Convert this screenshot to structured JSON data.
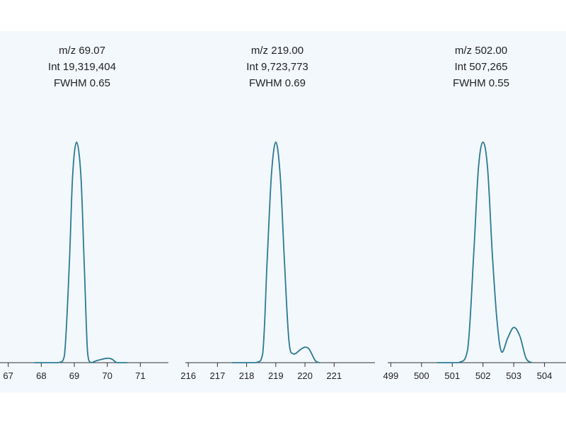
{
  "colors": {
    "line": "#2b7a93",
    "axis": "#333333",
    "panel_bg": "#f2f8fc"
  },
  "chart_data": [
    {
      "type": "line",
      "annotation": {
        "mz": "m/z 69.07",
        "int": "Int 19,319,404",
        "fwhm": "FWHM 0.65"
      },
      "xticks": [
        "67",
        "68",
        "69",
        "70",
        "71"
      ],
      "xlim": [
        66.75,
        71.85
      ],
      "ylim": [
        0,
        1.05
      ],
      "x": [
        67.8,
        68.5,
        68.7,
        68.85,
        68.95,
        69.07,
        69.2,
        69.3,
        69.4,
        69.5,
        69.7,
        70.0,
        70.15,
        70.3,
        70.6
      ],
      "y": [
        0,
        0,
        0.03,
        0.45,
        0.85,
        1.0,
        0.85,
        0.45,
        0.05,
        0,
        0.01,
        0.02,
        0.015,
        0,
        0
      ]
    },
    {
      "type": "line",
      "annotation": {
        "mz": "m/z 219.00",
        "int": "Int 9,723,773",
        "fwhm": "FWHM 0.69"
      },
      "xticks": [
        "216",
        "217",
        "218",
        "219",
        "220",
        "221"
      ],
      "xlim": [
        215.9,
        222.4
      ],
      "ylim": [
        0,
        1.05
      ],
      "x": [
        217.5,
        218.3,
        218.55,
        218.7,
        218.85,
        219.0,
        219.15,
        219.3,
        219.45,
        219.6,
        219.85,
        220.0,
        220.15,
        220.35,
        220.5
      ],
      "y": [
        0,
        0,
        0.04,
        0.45,
        0.85,
        1.0,
        0.85,
        0.45,
        0.1,
        0.04,
        0.06,
        0.07,
        0.06,
        0.01,
        0
      ]
    },
    {
      "type": "line",
      "annotation": {
        "mz": "m/z 502.00",
        "int": "Int 507,265",
        "fwhm": "FWHM 0.55"
      },
      "xticks": [
        "499",
        "500",
        "501",
        "502",
        "503",
        "504"
      ],
      "xlim": [
        498.9,
        504.7
      ],
      "ylim": [
        0,
        1.05
      ],
      "x": [
        500.5,
        501.2,
        501.5,
        501.7,
        501.85,
        502.0,
        502.15,
        502.3,
        502.45,
        502.6,
        502.8,
        503.0,
        503.2,
        503.4,
        503.6
      ],
      "y": [
        0,
        0,
        0.06,
        0.5,
        0.88,
        1.0,
        0.88,
        0.5,
        0.2,
        0.05,
        0.11,
        0.16,
        0.12,
        0.02,
        0
      ]
    }
  ]
}
